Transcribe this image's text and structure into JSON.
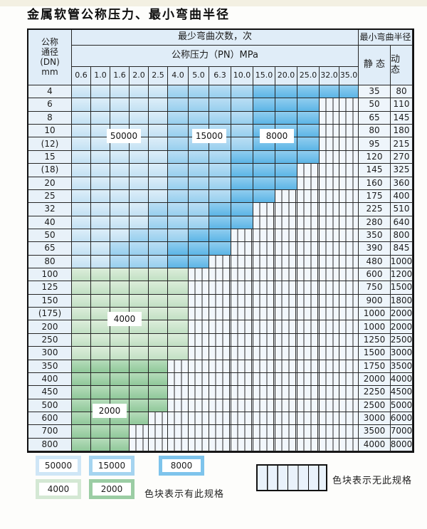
{
  "title": "金属软管公称压力、最小弯曲半径",
  "table": {
    "header": {
      "dn_lines": [
        "公称",
        "通径",
        "(DN)",
        "mm"
      ],
      "bend_cycles_label": "最少弯曲次数，次",
      "pressure_label": "公称压力（PN）MPa",
      "pressure_values": [
        "0.6",
        "1.0",
        "1.6",
        "2.0",
        "2.5",
        "4.0",
        "5.0",
        "6.3",
        "10.0",
        "15.0",
        "20.0",
        "25.0",
        "32.0",
        "35.0"
      ],
      "radius_label": "最小弯曲半径",
      "static_label": "静 态",
      "dynamic_label": "动 态"
    },
    "band_legend": {
      "b1": "50000",
      "b2": "15000",
      "b3": "8000",
      "g1": "4000",
      "g2": "2000",
      "st": "无此规格"
    },
    "region_labels": [
      {
        "text": "50000"
      },
      {
        "text": "15000"
      },
      {
        "text": "8000"
      },
      {
        "text": "4000"
      },
      {
        "text": "2000"
      }
    ],
    "rows": [
      {
        "dn": "4",
        "static": "35",
        "dynamic": "80",
        "bands": [
          [
            "b1",
            5
          ],
          [
            "b2",
            4
          ],
          [
            "b3",
            5
          ]
        ]
      },
      {
        "dn": "6",
        "static": "50",
        "dynamic": "110",
        "bands": [
          [
            "b1",
            5
          ],
          [
            "b2",
            4
          ],
          [
            "b3",
            3
          ]
        ]
      },
      {
        "dn": "8",
        "static": "65",
        "dynamic": "145",
        "bands": [
          [
            "b1",
            5
          ],
          [
            "b2",
            4
          ],
          [
            "b3",
            3
          ]
        ]
      },
      {
        "dn": "10",
        "static": "80",
        "dynamic": "180",
        "bands": [
          [
            "b1",
            5
          ],
          [
            "b2",
            4
          ],
          [
            "b3",
            3
          ]
        ]
      },
      {
        "dn": "(12)",
        "static": "95",
        "dynamic": "215",
        "bands": [
          [
            "b1",
            5
          ],
          [
            "b2",
            4
          ],
          [
            "b3",
            3
          ]
        ]
      },
      {
        "dn": "15",
        "static": "120",
        "dynamic": "270",
        "bands": [
          [
            "b1",
            5
          ],
          [
            "b2",
            3
          ],
          [
            "b3",
            4
          ]
        ]
      },
      {
        "dn": "(18)",
        "static": "145",
        "dynamic": "325",
        "bands": [
          [
            "b1",
            5
          ],
          [
            "b2",
            3
          ],
          [
            "b3",
            3
          ]
        ]
      },
      {
        "dn": "20",
        "static": "160",
        "dynamic": "360",
        "bands": [
          [
            "b1",
            5
          ],
          [
            "b2",
            3
          ],
          [
            "b3",
            3
          ]
        ]
      },
      {
        "dn": "25",
        "static": "175",
        "dynamic": "400",
        "bands": [
          [
            "b1",
            5
          ],
          [
            "b2",
            3
          ],
          [
            "b3",
            2
          ]
        ]
      },
      {
        "dn": "32",
        "static": "225",
        "dynamic": "510",
        "bands": [
          [
            "b1",
            4
          ],
          [
            "b2",
            3
          ],
          [
            "b3",
            2
          ]
        ]
      },
      {
        "dn": "40",
        "static": "280",
        "dynamic": "640",
        "bands": [
          [
            "b1",
            4
          ],
          [
            "b2",
            3
          ],
          [
            "b3",
            2
          ]
        ]
      },
      {
        "dn": "50",
        "static": "350",
        "dynamic": "800",
        "bands": [
          [
            "b1",
            3
          ],
          [
            "b2",
            3
          ],
          [
            "b3",
            2
          ]
        ]
      },
      {
        "dn": "65",
        "static": "390",
        "dynamic": "845",
        "bands": [
          [
            "b1",
            2
          ],
          [
            "b2",
            3
          ],
          [
            "b3",
            3
          ]
        ]
      },
      {
        "dn": "80",
        "static": "480",
        "dynamic": "1000",
        "bands": [
          [
            "b1",
            2
          ],
          [
            "b2",
            3
          ],
          [
            "b3",
            2
          ]
        ]
      },
      {
        "dn": "100",
        "static": "600",
        "dynamic": "1200",
        "bands": [
          [
            "g1",
            6
          ]
        ]
      },
      {
        "dn": "125",
        "static": "750",
        "dynamic": "1500",
        "bands": [
          [
            "g1",
            6
          ]
        ]
      },
      {
        "dn": "150",
        "static": "900",
        "dynamic": "1800",
        "bands": [
          [
            "g1",
            6
          ]
        ]
      },
      {
        "dn": "(175)",
        "static": "1000",
        "dynamic": "2000",
        "bands": [
          [
            "g1",
            6
          ]
        ]
      },
      {
        "dn": "200",
        "static": "1000",
        "dynamic": "2000",
        "bands": [
          [
            "g1",
            6
          ]
        ]
      },
      {
        "dn": "250",
        "static": "1250",
        "dynamic": "2500",
        "bands": [
          [
            "g1",
            6
          ]
        ]
      },
      {
        "dn": "300",
        "static": "1500",
        "dynamic": "3000",
        "bands": [
          [
            "g1",
            6
          ]
        ]
      },
      {
        "dn": "350",
        "static": "1750",
        "dynamic": "3500",
        "bands": [
          [
            "g2",
            5
          ]
        ]
      },
      {
        "dn": "400",
        "static": "2000",
        "dynamic": "4000",
        "bands": [
          [
            "g2",
            5
          ]
        ]
      },
      {
        "dn": "450",
        "static": "2250",
        "dynamic": "4500",
        "bands": [
          [
            "g2",
            5
          ]
        ]
      },
      {
        "dn": "500",
        "static": "2500",
        "dynamic": "5000",
        "bands": [
          [
            "g2",
            5
          ]
        ]
      },
      {
        "dn": "600",
        "static": "3000",
        "dynamic": "6000",
        "bands": [
          [
            "g2",
            4
          ]
        ]
      },
      {
        "dn": "700",
        "static": "3500",
        "dynamic": "7000",
        "bands": [
          [
            "g2",
            3
          ]
        ]
      },
      {
        "dn": "800",
        "static": "4000",
        "dynamic": "8000",
        "bands": [
          [
            "g2",
            3
          ]
        ]
      }
    ]
  },
  "legend": {
    "available_swatches": [
      {
        "label": "50000",
        "color": "#cfe6f6"
      },
      {
        "label": "15000",
        "color": "#a5d4f0"
      },
      {
        "label": "8000",
        "color": "#7ec4ec"
      },
      {
        "label": "4000",
        "color": "#d4e8d4"
      },
      {
        "label": "2000",
        "color": "#9bcda4"
      }
    ],
    "available_note": "色块表示有此规格",
    "no_spec_note": "色块表示无此规格"
  },
  "colors": {
    "blue_50000": "#cfe6f6",
    "blue_15000": "#a5d4f0",
    "blue_8000": "#7ec4ec",
    "green_4000": "#d4e8d4",
    "green_2000": "#9bcda4",
    "grid_line": "#262626",
    "header_bg": "#e0edf8",
    "no_spec_bg": "#f2f7fc"
  }
}
